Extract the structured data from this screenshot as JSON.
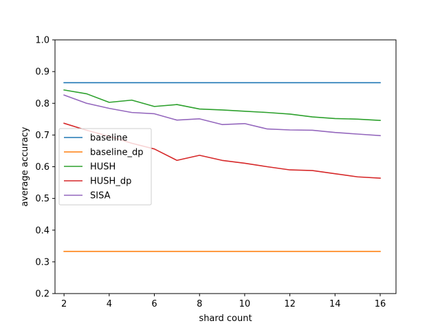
{
  "chart_data": {
    "type": "line",
    "title": "",
    "xlabel": "shard count",
    "ylabel": "average accuracy",
    "xlim": [
      1.6,
      16.7
    ],
    "ylim": [
      0.2,
      1.0
    ],
    "xticks": [
      2,
      4,
      6,
      8,
      10,
      12,
      14,
      16
    ],
    "yticks": [
      0.2,
      0.3,
      0.4,
      0.5,
      0.6,
      0.7,
      0.8,
      0.9,
      1.0
    ],
    "grid": false,
    "legend_position": "center-left",
    "x": [
      2,
      3,
      4,
      5,
      6,
      7,
      8,
      9,
      10,
      11,
      12,
      13,
      14,
      15,
      16
    ],
    "series": [
      {
        "name": "baseline",
        "color": "#1f77b4",
        "values": [
          0.865,
          0.865,
          0.865,
          0.865,
          0.865,
          0.865,
          0.865,
          0.865,
          0.865,
          0.865,
          0.865,
          0.865,
          0.865,
          0.865,
          0.865
        ]
      },
      {
        "name": "baseline_dp",
        "color": "#ff7f0e",
        "values": [
          0.333,
          0.333,
          0.333,
          0.333,
          0.333,
          0.333,
          0.333,
          0.333,
          0.333,
          0.333,
          0.333,
          0.333,
          0.333,
          0.333,
          0.333
        ]
      },
      {
        "name": "HUSH",
        "color": "#2ca02c",
        "values": [
          0.842,
          0.83,
          0.803,
          0.81,
          0.79,
          0.796,
          0.782,
          0.779,
          0.775,
          0.771,
          0.766,
          0.757,
          0.752,
          0.75,
          0.746
        ]
      },
      {
        "name": "HUSH_dp",
        "color": "#d62728",
        "values": [
          0.737,
          0.715,
          0.696,
          0.674,
          0.656,
          0.62,
          0.636,
          0.62,
          0.611,
          0.6,
          0.59,
          0.588,
          0.578,
          0.568,
          0.564
        ]
      },
      {
        "name": "SISA",
        "color": "#9467bd",
        "values": [
          0.826,
          0.8,
          0.784,
          0.771,
          0.767,
          0.747,
          0.751,
          0.733,
          0.736,
          0.719,
          0.716,
          0.715,
          0.708,
          0.703,
          0.698
        ]
      }
    ]
  }
}
